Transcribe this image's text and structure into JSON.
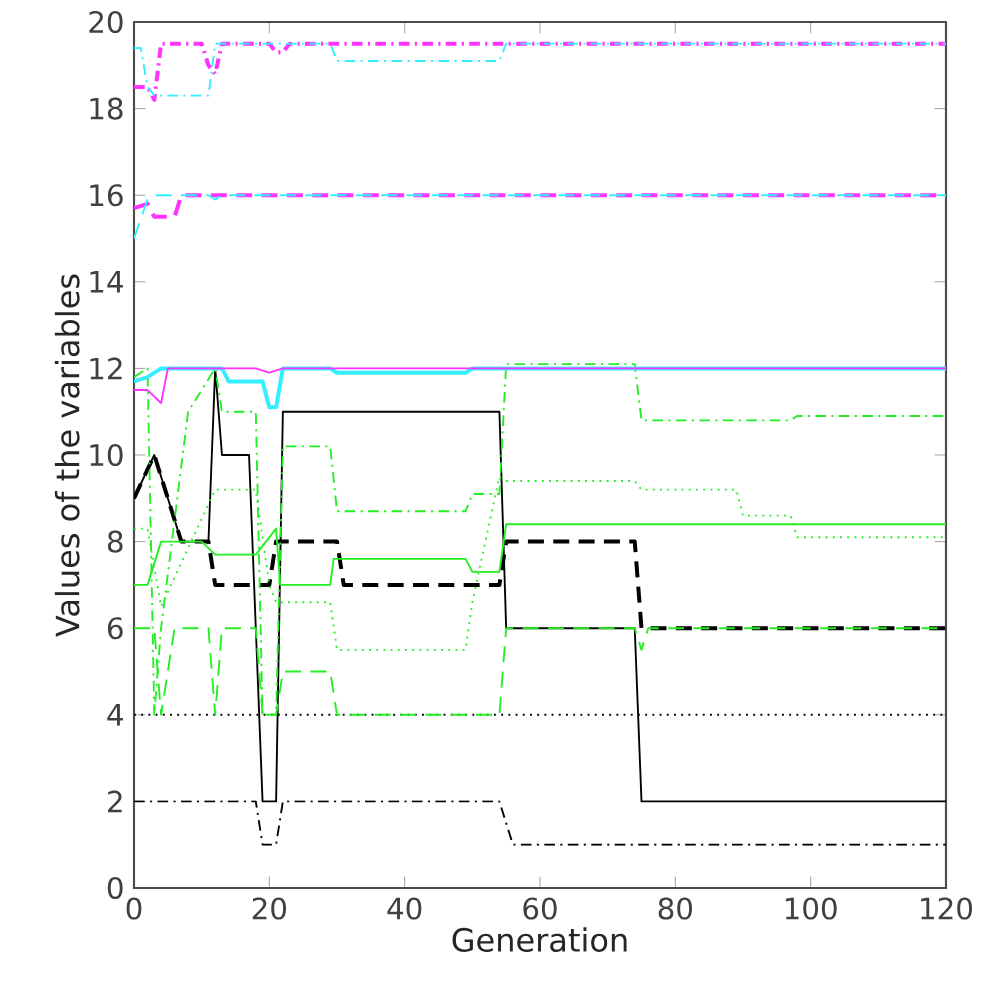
{
  "chart_data": {
    "type": "line",
    "xlabel": "Generation",
    "ylabel": "Values of the variables",
    "xlim": [
      0,
      120
    ],
    "ylim": [
      0,
      20
    ],
    "xticks": [
      0,
      20,
      40,
      60,
      80,
      100,
      120
    ],
    "yticks": [
      0,
      2,
      4,
      6,
      8,
      10,
      12,
      14,
      16,
      18,
      20
    ],
    "series": [
      {
        "color": "#000000",
        "line_style": "solid",
        "x": [
          0,
          3,
          5,
          7,
          11,
          12,
          13,
          17,
          19,
          21,
          22,
          54,
          55,
          74,
          75,
          120
        ],
        "values": [
          9,
          10,
          9,
          8,
          8,
          12,
          10,
          10,
          2,
          2,
          11,
          11,
          6,
          6,
          2,
          2
        ]
      },
      {
        "color": "#000000",
        "line_style": "dashed",
        "x": [
          0,
          3,
          5,
          7,
          11,
          12,
          20,
          21,
          30,
          31,
          54,
          55,
          74,
          75,
          120
        ],
        "values": [
          9,
          10,
          9,
          8,
          8,
          7,
          7,
          8,
          8,
          7,
          7,
          8,
          8,
          6,
          6
        ]
      },
      {
        "color": "#000000",
        "line_style": "dotted",
        "x": [
          0,
          120
        ],
        "values": [
          4,
          4
        ]
      },
      {
        "color": "#000000",
        "line_style": "dashdot",
        "x": [
          0,
          18,
          19,
          21,
          22,
          54,
          56,
          120
        ],
        "values": [
          2,
          2,
          1,
          1,
          2,
          2,
          1,
          1
        ]
      },
      {
        "color": "#22ee22",
        "line_style": "solid",
        "x": [
          0,
          2,
          4,
          10,
          12,
          18,
          21,
          21.6,
          29,
          29.5,
          49,
          50,
          54,
          55,
          120
        ],
        "values": [
          7,
          7,
          8,
          8,
          7.7,
          7.7,
          8.3,
          7,
          7,
          7.6,
          7.6,
          7.3,
          7.3,
          8.4,
          8.4
        ]
      },
      {
        "color": "#22ee22",
        "line_style": "dashed",
        "x": [
          0,
          3,
          4,
          6,
          11,
          12,
          13,
          18,
          19,
          21,
          22,
          29,
          30,
          54,
          55,
          74,
          75,
          76,
          120
        ],
        "values": [
          6,
          6,
          4,
          6,
          6,
          4,
          6,
          6,
          4,
          4,
          5,
          5,
          4,
          4,
          6,
          6,
          5.5,
          6,
          6
        ]
      },
      {
        "color": "#22ee22",
        "line_style": "dotted",
        "x": [
          0,
          2,
          4,
          12,
          18,
          20,
          21,
          29,
          30,
          49,
          50,
          54,
          55,
          74,
          75,
          89,
          90,
          97,
          98,
          120
        ],
        "values": [
          8.3,
          8.3,
          6.5,
          9.2,
          9.2,
          7,
          6.6,
          6.6,
          5.5,
          5.5,
          6.6,
          9.5,
          9.4,
          9.4,
          9.2,
          9.2,
          8.6,
          8.6,
          8.1,
          8.1
        ]
      },
      {
        "color": "#22ee22",
        "line_style": "dashdot",
        "x": [
          0,
          2,
          3,
          4,
          8,
          12,
          13,
          18,
          19,
          21,
          22,
          29,
          30,
          49,
          50,
          54,
          55,
          74,
          75,
          97,
          98,
          120
        ],
        "values": [
          11.8,
          12,
          4,
          6,
          11,
          12,
          11,
          11,
          4,
          4,
          10.2,
          10.2,
          8.7,
          8.7,
          9.1,
          9.1,
          12.1,
          12.1,
          10.8,
          10.8,
          10.9,
          10.9
        ]
      },
      {
        "color": "#33eeff",
        "line_style": "solid",
        "x": [
          0,
          2,
          4,
          13,
          14,
          19,
          20,
          21,
          22,
          29,
          30,
          49,
          50,
          120
        ],
        "values": [
          11.7,
          11.8,
          12,
          12,
          11.7,
          11.7,
          11.1,
          11.1,
          12,
          12,
          11.9,
          11.9,
          12,
          12
        ]
      },
      {
        "color": "#ff33ff",
        "line_style": "solid",
        "x": [
          0,
          2,
          4,
          5,
          18,
          20,
          22,
          120
        ],
        "values": [
          11.5,
          11.5,
          11.2,
          12,
          12,
          11.9,
          12,
          12
        ]
      },
      {
        "color": "#ff33ff",
        "line_style": "dashed",
        "x": [
          0,
          2,
          3,
          6,
          7,
          120
        ],
        "values": [
          15.7,
          15.8,
          15.5,
          15.5,
          16,
          16
        ]
      },
      {
        "color": "#33eeff",
        "line_style": "dashed",
        "x": [
          0,
          2,
          3,
          11,
          12,
          13,
          120
        ],
        "values": [
          15,
          15.9,
          16,
          16,
          15.9,
          16,
          16
        ]
      },
      {
        "color": "#ff33ff",
        "line_style": "dashdot",
        "x": [
          0,
          2,
          3,
          4,
          10,
          11,
          12,
          13,
          20,
          21,
          22,
          23,
          120
        ],
        "values": [
          18.5,
          18.5,
          18.2,
          19.5,
          19.5,
          19,
          18.8,
          19.5,
          19.5,
          19.3,
          19.3,
          19.5,
          19.5
        ]
      },
      {
        "color": "#33eeff",
        "line_style": "dashdot",
        "x": [
          0,
          1,
          2,
          3,
          11,
          12,
          13,
          29,
          30,
          54,
          55,
          120
        ],
        "values": [
          19.4,
          19.4,
          18.5,
          18.3,
          18.3,
          19.5,
          19.5,
          19.5,
          19.1,
          19.1,
          19.5,
          19.5
        ]
      }
    ]
  }
}
